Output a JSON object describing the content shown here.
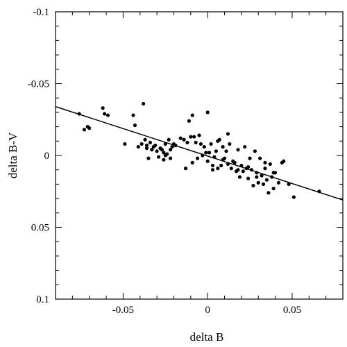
{
  "chart_data": {
    "type": "scatter",
    "xlabel": "delta B",
    "ylabel": "delta B-V",
    "xlim": [
      -0.09,
      0.08
    ],
    "ylim": [
      0.1,
      -0.1
    ],
    "y_axis_inverted": true,
    "x_ticks": [
      -0.05,
      0,
      0.05
    ],
    "x_tick_labels": [
      "-0.05",
      "0",
      "0.05"
    ],
    "y_ticks": [
      -0.1,
      -0.05,
      0,
      0.05,
      0.1
    ],
    "y_tick_labels": [
      "-0.1",
      "-0.05",
      "0",
      "0.05",
      "0.1"
    ],
    "grid": false,
    "series": [
      {
        "x": [
          -0.076,
          -0.073,
          -0.071,
          -0.07,
          -0.062,
          -0.061,
          -0.059,
          -0.049,
          -0.044,
          -0.043,
          -0.041,
          -0.039,
          -0.038,
          -0.037,
          -0.036,
          -0.036,
          -0.035,
          -0.034,
          -0.033,
          -0.032,
          -0.031,
          -0.03,
          -0.029,
          -0.028,
          -0.027,
          -0.026,
          -0.025,
          -0.025,
          -0.024,
          -0.023,
          -0.022,
          -0.021,
          -0.02,
          -0.019,
          -0.016,
          -0.014,
          -0.012,
          -0.011,
          -0.01,
          -0.009,
          -0.008,
          -0.007,
          -0.006,
          -0.005,
          -0.004,
          -0.003,
          -0.002,
          -0.001,
          0.0,
          0.001,
          0.002,
          0.003,
          0.004,
          0.005,
          0.006,
          0.007,
          0.008,
          0.009,
          0.01,
          0.011,
          0.012,
          0.013,
          0.014,
          0.015,
          0.016,
          0.017,
          0.018,
          0.019,
          0.02,
          0.021,
          0.022,
          0.023,
          0.024,
          0.025,
          0.026,
          0.027,
          0.028,
          0.029,
          0.03,
          0.031,
          0.032,
          0.033,
          0.034,
          0.035,
          0.036,
          0.037,
          0.038,
          0.039,
          0.04,
          0.042,
          0.045,
          0.048,
          0.051,
          -0.026,
          -0.022,
          -0.009,
          -0.013,
          0.0,
          0.003,
          0.006,
          0.009,
          0.012,
          0.018,
          0.024,
          0.029,
          0.034,
          0.039,
          0.044,
          0.066
        ],
        "y": [
          -0.029,
          -0.018,
          -0.02,
          -0.019,
          -0.033,
          -0.029,
          -0.028,
          -0.008,
          -0.028,
          -0.021,
          -0.006,
          -0.008,
          -0.036,
          -0.011,
          -0.005,
          -0.007,
          0.002,
          -0.009,
          -0.004,
          -0.006,
          -0.007,
          -0.003,
          0.001,
          -0.005,
          -0.004,
          -0.002,
          0.0,
          -0.008,
          -0.001,
          -0.011,
          -0.004,
          -0.006,
          -0.008,
          -0.007,
          -0.012,
          -0.011,
          -0.009,
          -0.024,
          -0.013,
          -0.028,
          -0.013,
          -0.009,
          0.002,
          -0.014,
          -0.008,
          0.0,
          -0.006,
          -0.002,
          0.004,
          -0.002,
          -0.008,
          0.007,
          0.001,
          -0.003,
          0.009,
          -0.011,
          0.007,
          -0.006,
          0.002,
          -0.003,
          0.006,
          -0.008,
          0.009,
          0.004,
          0.005,
          0.011,
          -0.004,
          0.015,
          0.007,
          0.011,
          -0.006,
          0.009,
          0.016,
          0.002,
          0.01,
          0.021,
          -0.003,
          0.012,
          0.019,
          0.002,
          0.014,
          0.02,
          0.009,
          0.017,
          0.026,
          0.006,
          0.015,
          0.023,
          0.012,
          0.019,
          0.004,
          0.02,
          0.029,
          0.003,
          0.002,
          0.005,
          0.009,
          -0.03,
          0.01,
          -0.01,
          0.003,
          -0.015,
          0.01,
          0.008,
          0.015,
          0.005,
          0.012,
          0.005,
          0.025
        ]
      }
    ],
    "fit_line": {
      "x": [
        -0.09,
        0.08
      ],
      "y": [
        -0.034,
        0.031
      ]
    }
  }
}
